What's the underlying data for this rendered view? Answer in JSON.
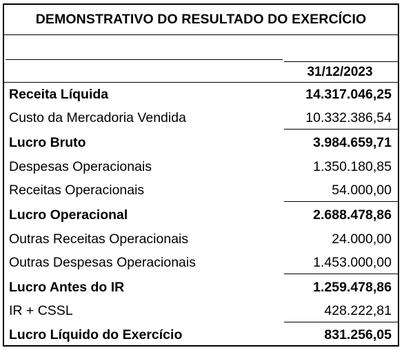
{
  "report": {
    "title": "DEMONSTRATIVO DO RESULTADO DO EXERCÍCIO",
    "date_header": "31/12/2023",
    "rows": [
      {
        "label": "Receita Líquida",
        "value": "14.317.046,25"
      },
      {
        "label": "Custo da Mercadoria Vendida",
        "value": "10.332.386,54"
      },
      {
        "label": "Lucro Bruto",
        "value": "3.984.659,71"
      },
      {
        "label": "Despesas Operacionais",
        "value": "1.350.180,85"
      },
      {
        "label": "Receitas Operacionais",
        "value": "54.000,00"
      },
      {
        "label": "Lucro Operacional",
        "value": "2.688.478,86"
      },
      {
        "label": "Outras Receitas Operacionais",
        "value": "24.000,00"
      },
      {
        "label": "Outras Despesas Operacionais",
        "value": "1.453.000,00"
      },
      {
        "label": "Lucro Antes do IR",
        "value": "1.259.478,86"
      },
      {
        "label": "IR + CSSL",
        "value": "428.222,81"
      },
      {
        "label": "Lucro Líquido do Exercício",
        "value": "831.256,05"
      }
    ]
  }
}
